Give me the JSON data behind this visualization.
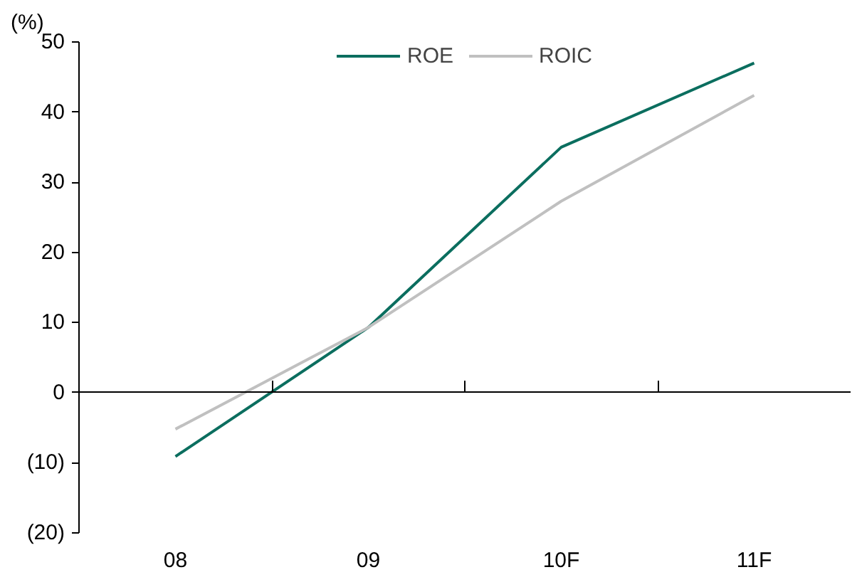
{
  "chart_data": {
    "type": "line",
    "ylabel": "(%)",
    "categories": [
      "08",
      "09",
      "10F",
      "11F"
    ],
    "series": [
      {
        "name": "ROE",
        "color": "#0b6e5f",
        "values": [
          -9.1,
          9.3,
          35,
          47
        ]
      },
      {
        "name": "ROIC",
        "color": "#c0c0c0",
        "values": [
          -5.2,
          9.3,
          27.3,
          42.4
        ]
      }
    ],
    "ylim": [
      -20,
      50
    ],
    "yticks": [
      {
        "value": -20,
        "label": "(20)"
      },
      {
        "value": -10,
        "label": "(10)"
      },
      0,
      10,
      20,
      30,
      40,
      50
    ],
    "legend": "top",
    "marker": "none",
    "line_style": "solid"
  }
}
